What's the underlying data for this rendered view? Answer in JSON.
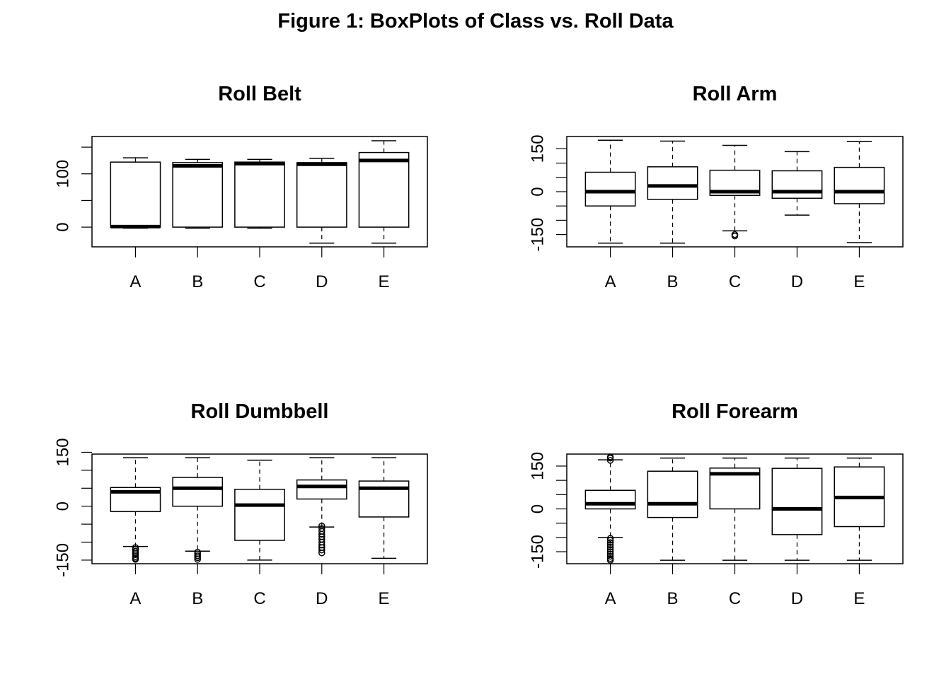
{
  "figure_title": "Figure 1: BoxPlots of Class vs. Roll Data",
  "chart_data": [
    {
      "type": "boxplot",
      "title": "Roll Belt",
      "xlabel": "",
      "ylabel": "",
      "categories": [
        "A",
        "B",
        "C",
        "D",
        "E"
      ],
      "ylim": [
        -37,
        170
      ],
      "yticks": [
        0,
        50,
        100,
        150
      ],
      "ytick_labels": [
        "0",
        "",
        "100",
        ""
      ],
      "boxes": [
        {
          "whisker_low": -2,
          "q1": 0,
          "median": 1,
          "q3": 122,
          "whisker_high": 130,
          "outliers": []
        },
        {
          "whisker_low": -2,
          "q1": 0,
          "median": 115,
          "q3": 121,
          "whisker_high": 127,
          "outliers": []
        },
        {
          "whisker_low": -2,
          "q1": 0,
          "median": 119,
          "q3": 122,
          "whisker_high": 127,
          "outliers": []
        },
        {
          "whisker_low": -30,
          "q1": 0,
          "median": 118,
          "q3": 121,
          "whisker_high": 129,
          "outliers": []
        },
        {
          "whisker_low": -30,
          "q1": 0,
          "median": 125,
          "q3": 140,
          "whisker_high": 162,
          "outliers": []
        }
      ]
    },
    {
      "type": "boxplot",
      "title": "Roll Arm",
      "xlabel": "",
      "ylabel": "",
      "categories": [
        "A",
        "B",
        "C",
        "D",
        "E"
      ],
      "ylim": [
        -193,
        193
      ],
      "yticks": [
        -150,
        -100,
        -50,
        0,
        50,
        100,
        150
      ],
      "ytick_labels": [
        "-150",
        "",
        "",
        "0",
        "",
        "",
        "150"
      ],
      "boxes": [
        {
          "whisker_low": -180,
          "q1": -50,
          "median": 0,
          "q3": 68,
          "whisker_high": 180,
          "outliers": []
        },
        {
          "whisker_low": -180,
          "q1": -27,
          "median": 20,
          "q3": 87,
          "whisker_high": 177,
          "outliers": []
        },
        {
          "whisker_low": -137,
          "q1": -13,
          "median": 0,
          "q3": 75,
          "whisker_high": 162,
          "outliers": [
            -150,
            -155
          ]
        },
        {
          "whisker_low": -82,
          "q1": -23,
          "median": 0,
          "q3": 73,
          "whisker_high": 140,
          "outliers": []
        },
        {
          "whisker_low": -178,
          "q1": -42,
          "median": 0,
          "q3": 85,
          "whisker_high": 175,
          "outliers": []
        }
      ]
    },
    {
      "type": "boxplot",
      "title": "Roll Dumbbell",
      "xlabel": "",
      "ylabel": "",
      "categories": [
        "A",
        "B",
        "C",
        "D",
        "E"
      ],
      "ylim": [
        -160,
        145
      ],
      "yticks": [
        -150,
        -100,
        -50,
        0,
        50,
        100,
        150
      ],
      "ytick_labels": [
        "-150",
        "",
        "",
        "0",
        "",
        "",
        "150"
      ],
      "boxes": [
        {
          "whisker_low": -112,
          "q1": -15,
          "median": 40,
          "q3": 52,
          "whisker_high": 135,
          "outliers": [
            -115,
            -120,
            -125,
            -130,
            -135,
            -140,
            -145,
            -148
          ]
        },
        {
          "whisker_low": -125,
          "q1": 0,
          "median": 50,
          "q3": 80,
          "whisker_high": 135,
          "outliers": [
            -128,
            -133,
            -138,
            -143,
            -148
          ]
        },
        {
          "whisker_low": -150,
          "q1": -95,
          "median": 3,
          "q3": 47,
          "whisker_high": 128,
          "outliers": []
        },
        {
          "whisker_low": -58,
          "q1": 20,
          "median": 55,
          "q3": 73,
          "whisker_high": 135,
          "outliers": [
            -55,
            -62,
            -70,
            -78,
            -85,
            -92,
            -100,
            -108,
            -115,
            -122,
            -130
          ]
        },
        {
          "whisker_low": -145,
          "q1": -30,
          "median": 50,
          "q3": 70,
          "whisker_high": 135,
          "outliers": []
        }
      ]
    },
    {
      "type": "boxplot",
      "title": "Roll Forearm",
      "xlabel": "",
      "ylabel": "",
      "categories": [
        "A",
        "B",
        "C",
        "D",
        "E"
      ],
      "ylim": [
        -192,
        192
      ],
      "yticks": [
        -150,
        -100,
        -50,
        0,
        50,
        100,
        150
      ],
      "ytick_labels": [
        "-150",
        "",
        "",
        "0",
        "",
        "",
        "150"
      ],
      "boxes": [
        {
          "whisker_low": -100,
          "q1": 0,
          "median": 18,
          "q3": 65,
          "whisker_high": 172,
          "outliers": [
            -103,
            -110,
            -118,
            -126,
            -134,
            -142,
            -150,
            -158,
            -166,
            -174,
            -180,
            170,
            178,
            182
          ]
        },
        {
          "whisker_low": -180,
          "q1": -30,
          "median": 18,
          "q3": 132,
          "whisker_high": 178,
          "outliers": []
        },
        {
          "whisker_low": -180,
          "q1": 0,
          "median": 123,
          "q3": 143,
          "whisker_high": 178,
          "outliers": []
        },
        {
          "whisker_low": -180,
          "q1": -90,
          "median": 0,
          "q3": 142,
          "whisker_high": 178,
          "outliers": []
        },
        {
          "whisker_low": -180,
          "q1": -62,
          "median": 40,
          "q3": 147,
          "whisker_high": 178,
          "outliers": []
        }
      ]
    }
  ]
}
